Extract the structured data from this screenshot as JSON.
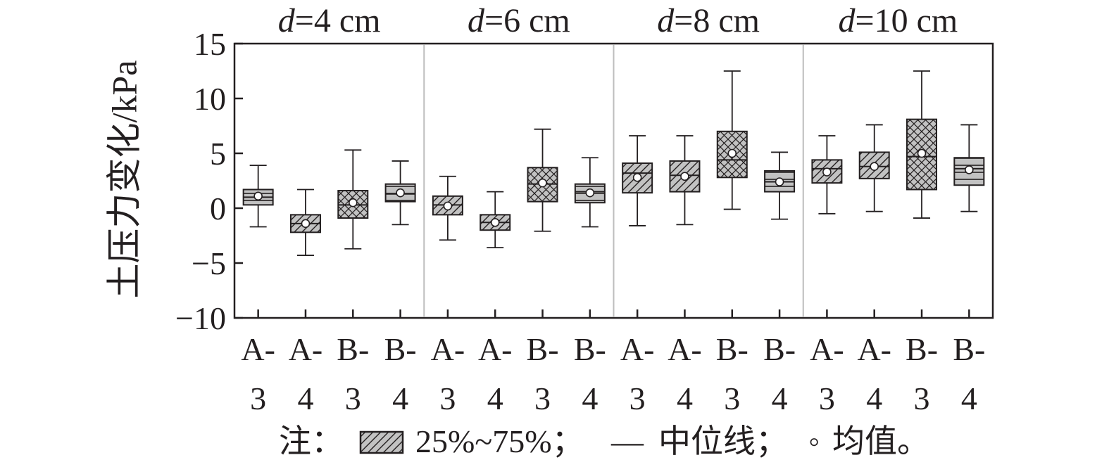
{
  "chart_data": {
    "type": "box",
    "ylabel": "土压力变化/kPa",
    "ylim": [
      -10,
      15
    ],
    "yticks": [
      15,
      10,
      5,
      0,
      -5,
      -10
    ],
    "ytick_labels": [
      "15",
      "10",
      "5",
      "0",
      "−5",
      "−10"
    ],
    "grid": false,
    "legend_position": "bottom",
    "groups": [
      {
        "label_var": "d",
        "label_rest": "=4 cm",
        "boxes": [
          {
            "cat": "A-3",
            "top": "A-",
            "bottom": "3",
            "pattern": "hline",
            "min": -1.7,
            "q1": 0.3,
            "median": 1.0,
            "q3": 1.7,
            "max": 3.9,
            "mean": 1.1
          },
          {
            "cat": "A-4",
            "top": "A-",
            "bottom": "4",
            "pattern": "diag",
            "min": -4.3,
            "q1": -2.2,
            "median": -1.4,
            "q3": -0.6,
            "max": 1.7,
            "mean": -1.4
          },
          {
            "cat": "B-3",
            "top": "B-",
            "bottom": "3",
            "pattern": "cross",
            "min": -3.7,
            "q1": -0.9,
            "median": 0.3,
            "q3": 1.6,
            "max": 5.3,
            "mean": 0.5
          },
          {
            "cat": "B-4",
            "top": "B-",
            "bottom": "4",
            "pattern": "hline",
            "min": -1.5,
            "q1": 0.6,
            "median": 1.3,
            "q3": 2.2,
            "max": 4.3,
            "mean": 1.4
          }
        ]
      },
      {
        "label_var": "d",
        "label_rest": "=6 cm",
        "boxes": [
          {
            "cat": "A-3",
            "top": "A-",
            "bottom": "3",
            "pattern": "diag",
            "min": -2.9,
            "q1": -0.6,
            "median": 0.3,
            "q3": 1.1,
            "max": 2.9,
            "mean": 0.2
          },
          {
            "cat": "A-4",
            "top": "A-",
            "bottom": "4",
            "pattern": "diag",
            "min": -3.6,
            "q1": -2.0,
            "median": -1.3,
            "q3": -0.6,
            "max": 1.5,
            "mean": -1.3
          },
          {
            "cat": "B-3",
            "top": "B-",
            "bottom": "3",
            "pattern": "cross",
            "min": -2.1,
            "q1": 0.6,
            "median": 2.2,
            "q3": 3.7,
            "max": 7.2,
            "mean": 2.3
          },
          {
            "cat": "B-4",
            "top": "B-",
            "bottom": "4",
            "pattern": "hline",
            "min": -1.7,
            "q1": 0.5,
            "median": 1.5,
            "q3": 2.2,
            "max": 4.6,
            "mean": 1.4
          }
        ]
      },
      {
        "label_var": "d",
        "label_rest": "=8 cm",
        "boxes": [
          {
            "cat": "A-3",
            "top": "A-",
            "bottom": "3",
            "pattern": "diag",
            "min": -1.6,
            "q1": 1.4,
            "median": 3.2,
            "q3": 4.1,
            "max": 6.6,
            "mean": 2.8
          },
          {
            "cat": "A-4",
            "top": "A-",
            "bottom": "4",
            "pattern": "diag",
            "min": -1.5,
            "q1": 1.5,
            "median": 3.0,
            "q3": 4.3,
            "max": 6.6,
            "mean": 2.9
          },
          {
            "cat": "B-3",
            "top": "B-",
            "bottom": "3",
            "pattern": "cross",
            "min": -0.1,
            "q1": 2.8,
            "median": 4.4,
            "q3": 7.0,
            "max": 12.5,
            "mean": 5.0
          },
          {
            "cat": "B-4",
            "top": "B-",
            "bottom": "4",
            "pattern": "hline",
            "min": -1.0,
            "q1": 1.5,
            "median": 2.4,
            "q3": 3.4,
            "max": 5.1,
            "mean": 2.4
          }
        ]
      },
      {
        "label_var": "d",
        "label_rest": "=10 cm",
        "boxes": [
          {
            "cat": "A-3",
            "top": "A-",
            "bottom": "3",
            "pattern": "diag",
            "min": -0.5,
            "q1": 2.3,
            "median": 3.6,
            "q3": 4.4,
            "max": 6.6,
            "mean": 3.3
          },
          {
            "cat": "A-4",
            "top": "A-",
            "bottom": "4",
            "pattern": "diag",
            "min": -0.3,
            "q1": 2.7,
            "median": 3.8,
            "q3": 5.1,
            "max": 7.6,
            "mean": 3.8
          },
          {
            "cat": "B-3",
            "top": "B-",
            "bottom": "3",
            "pattern": "cross",
            "min": -0.9,
            "q1": 1.7,
            "median": 4.7,
            "q3": 8.1,
            "max": 12.5,
            "mean": 5.0
          },
          {
            "cat": "B-4",
            "top": "B-",
            "bottom": "4",
            "pattern": "hline",
            "min": -0.3,
            "q1": 2.1,
            "median": 3.6,
            "q3": 4.6,
            "max": 7.6,
            "mean": 3.5
          }
        ]
      }
    ],
    "note": {
      "prefix": "注：",
      "range_label": "25%~75%；",
      "median_symbol": "—",
      "median_label": "中位线；",
      "mean_symbol": "◦",
      "mean_label": "均值。"
    },
    "colors": {
      "box_fill": "#c2c2c2",
      "line": "#231f20",
      "divider": "#bdbdbd"
    }
  }
}
